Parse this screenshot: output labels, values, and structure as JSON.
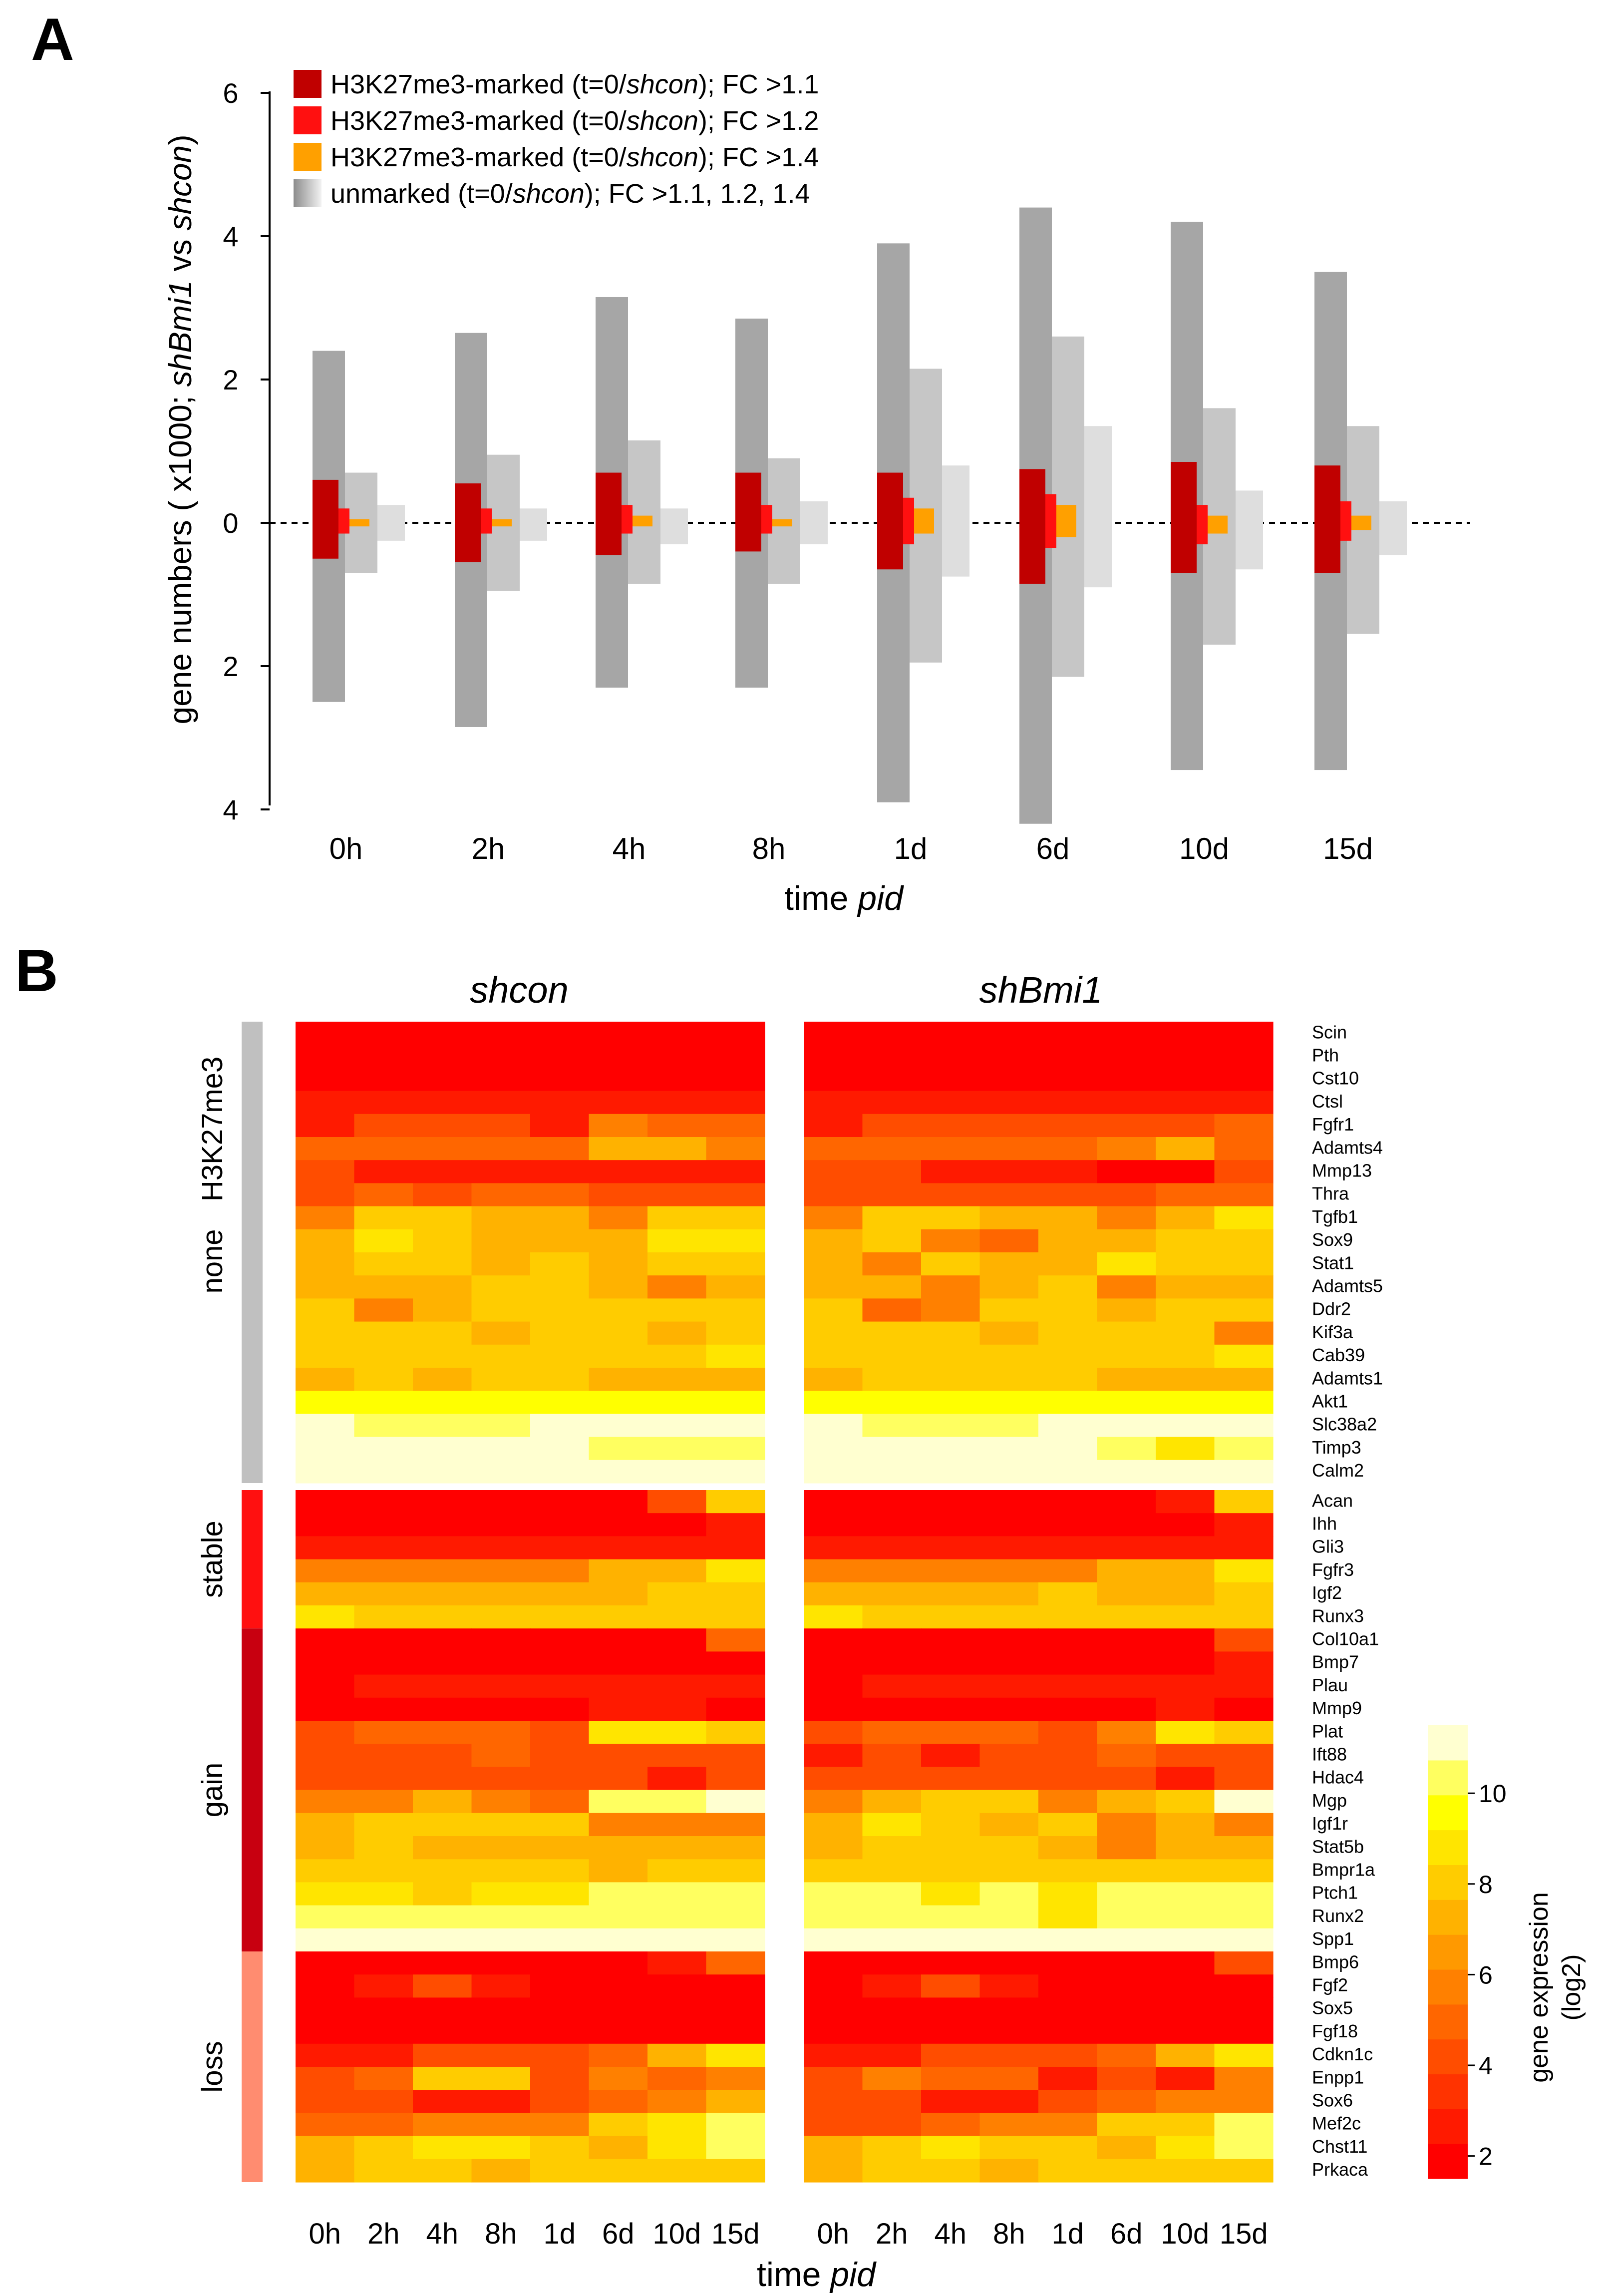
{
  "panel_a": {
    "letter": "A",
    "title": "",
    "ylabel_parts": [
      "gene numbers ( x1000; ",
      "shBmi1",
      " vs ",
      "shcon",
      ")"
    ],
    "xlabel_parts": [
      "time ",
      "pid"
    ],
    "yticks_up": [
      "0",
      "2",
      "4",
      "6"
    ],
    "yticks_down": [
      "2",
      "4"
    ],
    "legend": [
      {
        "color": "#c00000",
        "gradient": false,
        "parts": [
          "H3K27me3-marked (t=0/",
          "shcon",
          "); FC >1.1"
        ]
      },
      {
        "color": "#ff1010",
        "gradient": false,
        "parts": [
          "H3K27me3-marked (t=0/",
          "shcon",
          "); FC >1.2"
        ]
      },
      {
        "color": "#ffa000",
        "gradient": false,
        "parts": [
          "H3K27me3-marked (t=0/",
          "shcon",
          "); FC >1.4"
        ]
      },
      {
        "color": "#999999",
        "gradient": true,
        "parts": [
          "unmarked (t=0/",
          "shcon",
          "); FC >1.1, 1.2, 1.4"
        ]
      }
    ],
    "colors": {
      "marked": [
        "#c00000",
        "#ff1010",
        "#ffa000"
      ],
      "unmarked": [
        "#a6a6a6",
        "#c6c6c6",
        "#dedede"
      ]
    }
  },
  "panel_b": {
    "letter": "B",
    "headings": [
      "shcon",
      "shBmi1"
    ],
    "xlabel_parts": [
      "time ",
      "pid"
    ],
    "groups": [
      {
        "label": "H3K27me3",
        "label2": "none",
        "start": 0,
        "count": 20,
        "color": "#c0c0c0"
      },
      {
        "label": "stable",
        "label2": "",
        "start": 20,
        "count": 6,
        "color": "#ff1010"
      },
      {
        "label": "gain",
        "label2": "",
        "start": 26,
        "count": 14,
        "color": "#c80010"
      },
      {
        "label": "loss",
        "label2": "",
        "start": 40,
        "count": 10,
        "color": "#ff8c70"
      }
    ],
    "colorbar": {
      "label1": "gene expression",
      "label2": "(log2)",
      "ticks": [
        "2",
        "4",
        "6",
        "8",
        "10"
      ],
      "palette": [
        "#ff0000",
        "#ff1a00",
        "#ff3300",
        "#ff4d00",
        "#ff6600",
        "#ff8000",
        "#ff9900",
        "#ffb200",
        "#ffcc00",
        "#ffe500",
        "#ffff00",
        "#ffff60",
        "#ffffd0"
      ]
    }
  },
  "chart_data": [
    {
      "type": "bar",
      "title": "",
      "xlabel": "time pid",
      "ylabel": "gene numbers ( x1000; shBmi1 vs shcon)",
      "ylim": [
        -4,
        6
      ],
      "categories": [
        "0h",
        "2h",
        "4h",
        "8h",
        "1d",
        "6d",
        "10d",
        "15d"
      ],
      "series": [
        {
          "name": "unmarked FC >1.1 up",
          "values": [
            2.4,
            2.65,
            3.15,
            2.85,
            3.9,
            4.4,
            4.2,
            3.5
          ]
        },
        {
          "name": "unmarked FC >1.1 down",
          "values": [
            -2.5,
            -2.85,
            -2.3,
            -2.3,
            -3.9,
            -4.2,
            -3.45,
            -3.45
          ]
        },
        {
          "name": "unmarked FC >1.2 up",
          "values": [
            0.7,
            0.95,
            1.15,
            0.9,
            2.15,
            2.6,
            1.6,
            1.35
          ]
        },
        {
          "name": "unmarked FC >1.2 down",
          "values": [
            -0.7,
            -0.95,
            -0.85,
            -0.85,
            -1.95,
            -2.15,
            -1.7,
            -1.55
          ]
        },
        {
          "name": "unmarked FC >1.4 up",
          "values": [
            0.25,
            0.2,
            0.2,
            0.3,
            0.8,
            1.35,
            0.45,
            0.3
          ]
        },
        {
          "name": "unmarked FC >1.4 down",
          "values": [
            -0.25,
            -0.25,
            -0.3,
            -0.3,
            -0.75,
            -0.9,
            -0.65,
            -0.45
          ]
        },
        {
          "name": "H3K27me3-marked FC >1.1 up",
          "values": [
            0.6,
            0.55,
            0.7,
            0.7,
            0.7,
            0.75,
            0.85,
            0.8
          ]
        },
        {
          "name": "H3K27me3-marked FC >1.1 down",
          "values": [
            -0.5,
            -0.55,
            -0.45,
            -0.4,
            -0.65,
            -0.85,
            -0.7,
            -0.7
          ]
        },
        {
          "name": "H3K27me3-marked FC >1.2 up",
          "values": [
            0.2,
            0.2,
            0.25,
            0.25,
            0.35,
            0.4,
            0.25,
            0.3
          ]
        },
        {
          "name": "H3K27me3-marked FC >1.2 down",
          "values": [
            -0.15,
            -0.15,
            -0.15,
            -0.15,
            -0.3,
            -0.35,
            -0.3,
            -0.25
          ]
        },
        {
          "name": "H3K27me3-marked FC >1.4 up",
          "values": [
            0.05,
            0.05,
            0.1,
            0.05,
            0.2,
            0.25,
            0.1,
            0.1
          ]
        },
        {
          "name": "H3K27me3-marked FC >1.4 down",
          "values": [
            -0.05,
            -0.05,
            -0.05,
            -0.05,
            -0.15,
            -0.2,
            -0.15,
            -0.1
          ]
        }
      ]
    },
    {
      "type": "heatmap",
      "title": "",
      "xlabel": "time pid",
      "ylabel": "",
      "value_range": [
        1.5,
        11.5
      ],
      "conditions": [
        "shcon",
        "shBmi1"
      ],
      "timepoints": [
        "0h",
        "2h",
        "4h",
        "8h",
        "1d",
        "6d",
        "10d",
        "15d"
      ],
      "genes": [
        "Scin",
        "Pth",
        "Cst10",
        "Ctsl",
        "Fgfr1",
        "Adamts4",
        "Mmp13",
        "Thra",
        "Tgfb1",
        "Sox9",
        "Stat1",
        "Adamts5",
        "Ddr2",
        "Kif3a",
        "Cab39",
        "Adamts1",
        "Akt1",
        "Slc38a2",
        "Timp3",
        "Calm2",
        "Acan",
        "Ihh",
        "Gli3",
        "Fgfr3",
        "Igf2",
        "Runx3",
        "Col10a1",
        "Bmp7",
        "Plau",
        "Mmp9",
        "Plat",
        "Ift88",
        "Hdac4",
        "Mgp",
        "Igf1r",
        "Stat5b",
        "Bmpr1a",
        "Ptch1",
        "Runx2",
        "Spp1",
        "Bmp6",
        "Fgf2",
        "Sox5",
        "Fgf18",
        "Cdkn1c",
        "Enpp1",
        "Sox6",
        "Mef2c",
        "Chst11",
        "Prkaca"
      ],
      "values_shcon": [
        [
          2,
          2,
          2,
          2,
          2,
          2,
          2,
          2
        ],
        [
          2,
          2,
          2,
          2,
          2,
          2,
          2,
          2
        ],
        [
          2,
          2,
          2,
          2,
          2,
          2,
          2,
          2
        ],
        [
          3,
          3,
          3,
          2.5,
          2.5,
          2.5,
          2.5,
          2.5
        ],
        [
          3,
          4,
          4,
          4,
          3,
          6,
          5,
          5
        ],
        [
          5,
          5,
          5,
          5,
          5,
          7,
          7,
          6
        ],
        [
          4,
          3,
          3,
          2.5,
          2.5,
          3,
          3,
          3
        ],
        [
          4,
          5,
          4,
          5,
          5,
          4,
          4,
          4
        ],
        [
          6,
          8,
          8,
          7,
          7,
          6,
          8,
          8
        ],
        [
          7,
          9,
          8,
          7,
          7,
          7,
          9,
          9
        ],
        [
          7,
          8,
          8,
          7,
          8,
          7,
          8,
          8
        ],
        [
          7,
          7,
          7,
          8,
          8,
          7,
          6,
          7
        ],
        [
          8,
          6,
          7,
          8,
          8,
          8,
          8,
          8
        ],
        [
          8,
          8,
          8,
          7,
          8,
          8,
          7,
          8
        ],
        [
          8,
          8,
          8,
          8,
          8,
          8,
          8,
          9
        ],
        [
          7,
          8,
          7,
          8,
          8,
          7,
          7,
          7
        ],
        [
          9.5,
          9.5,
          9.5,
          9.5,
          9.5,
          9.5,
          9.5,
          9.5
        ],
        [
          11,
          10,
          10,
          10,
          11,
          11,
          11,
          11
        ],
        [
          11,
          12,
          12,
          12,
          11,
          10,
          10,
          10
        ],
        [
          12,
          12,
          12,
          12,
          12,
          12,
          12,
          12
        ],
        [
          2,
          2,
          2,
          2,
          2,
          2,
          4,
          8
        ],
        [
          2,
          2,
          2,
          2,
          2,
          2,
          2,
          3
        ],
        [
          3,
          3,
          3,
          3,
          3,
          3,
          3,
          3
        ],
        [
          6,
          6,
          6,
          6,
          6,
          7,
          7,
          9
        ],
        [
          7,
          7,
          7,
          7,
          7,
          7,
          8,
          8
        ],
        [
          9,
          8,
          8,
          8,
          8,
          8,
          8,
          8
        ],
        [
          2,
          2,
          2,
          2,
          2,
          2,
          2,
          5
        ],
        [
          2,
          2,
          2,
          2,
          2,
          2,
          2,
          2
        ],
        [
          2,
          3,
          3,
          3,
          3,
          3,
          3,
          3
        ],
        [
          2,
          2,
          2,
          2,
          2,
          3,
          3,
          2
        ],
        [
          4,
          5,
          5,
          5,
          4,
          9,
          9,
          8
        ],
        [
          4,
          4,
          4,
          5,
          4,
          4,
          4,
          4
        ],
        [
          4,
          4,
          4,
          4,
          4,
          4,
          3,
          4
        ],
        [
          6,
          6,
          7,
          6,
          5,
          10,
          10,
          11
        ],
        [
          7,
          8,
          8,
          8,
          8,
          6,
          6,
          6
        ],
        [
          7,
          8,
          7,
          7,
          7,
          7,
          7,
          7
        ],
        [
          8,
          8,
          8,
          8,
          8,
          7,
          8,
          8
        ],
        [
          9,
          9,
          8,
          9,
          9,
          10,
          10,
          10
        ],
        [
          10,
          10,
          10,
          10,
          10,
          10,
          10,
          10
        ],
        [
          11,
          12,
          12,
          12,
          11,
          12,
          12,
          12
        ],
        [
          2,
          2,
          2,
          2,
          2,
          2,
          3,
          5
        ],
        [
          2,
          3,
          4,
          3,
          2,
          2,
          2,
          2
        ],
        [
          2,
          2,
          2,
          2,
          2,
          2,
          2,
          2
        ],
        [
          2,
          2,
          2,
          2,
          2,
          2,
          2,
          2
        ],
        [
          3,
          3,
          4,
          4,
          4,
          5,
          7,
          9
        ],
        [
          4,
          5,
          8,
          8,
          4,
          6,
          5,
          6
        ],
        [
          4,
          4,
          3,
          3,
          4,
          5,
          6,
          7
        ],
        [
          5,
          5,
          6,
          6,
          6,
          8,
          9,
          10
        ],
        [
          7,
          8,
          9,
          9,
          8,
          7,
          9,
          10
        ],
        [
          7,
          8,
          8,
          7,
          8,
          8,
          8,
          8
        ]
      ],
      "values_shBmi1": [
        [
          2,
          2,
          2,
          2,
          2,
          2,
          2,
          2
        ],
        [
          2,
          2,
          2,
          2,
          2,
          2,
          2,
          2
        ],
        [
          2,
          2,
          2,
          2,
          2,
          2,
          2,
          2
        ],
        [
          3,
          3,
          3,
          3,
          3,
          3,
          3,
          3
        ],
        [
          3,
          4,
          4,
          4,
          4,
          4,
          4,
          5
        ],
        [
          5,
          5,
          5,
          5,
          5,
          6,
          7,
          5
        ],
        [
          4,
          4,
          3,
          3,
          3,
          2,
          2,
          4
        ],
        [
          4,
          4,
          4,
          4,
          4,
          4,
          5,
          5
        ],
        [
          6,
          8,
          8,
          7,
          7,
          6,
          7,
          9
        ],
        [
          7,
          8,
          6,
          5,
          7,
          7,
          8,
          8
        ],
        [
          7,
          6,
          8,
          7,
          7,
          9,
          8,
          8
        ],
        [
          7,
          7,
          6,
          7,
          8,
          6,
          7,
          7
        ],
        [
          8,
          5,
          6,
          8,
          8,
          7,
          8,
          8
        ],
        [
          8,
          8,
          8,
          7,
          8,
          8,
          8,
          6
        ],
        [
          8,
          8,
          8,
          8,
          8,
          8,
          8,
          9
        ],
        [
          7,
          8,
          8,
          8,
          8,
          7,
          7,
          7
        ],
        [
          9.5,
          9.5,
          9.5,
          9.5,
          9.5,
          9.5,
          9.5,
          9.5
        ],
        [
          11,
          10,
          10,
          10,
          11,
          11,
          11,
          11
        ],
        [
          11,
          12,
          12,
          12,
          11,
          10,
          9,
          10
        ],
        [
          12,
          12,
          12,
          12,
          12,
          12,
          12,
          12
        ],
        [
          2,
          2,
          2,
          2,
          2,
          2,
          3,
          8
        ],
        [
          2,
          2,
          2,
          2,
          2,
          2,
          2,
          3
        ],
        [
          3,
          3,
          3,
          3,
          3,
          3,
          3,
          3
        ],
        [
          6,
          6,
          6,
          6,
          6,
          7,
          7,
          9
        ],
        [
          7,
          7,
          7,
          7,
          8,
          7,
          7,
          8
        ],
        [
          9,
          8,
          8,
          8,
          8,
          8,
          8,
          8
        ],
        [
          2,
          2,
          2,
          2,
          2,
          2,
          2,
          4
        ],
        [
          2,
          2,
          2,
          2,
          2,
          2,
          2,
          3
        ],
        [
          2,
          3,
          3,
          3,
          3,
          3,
          3,
          3
        ],
        [
          2,
          2,
          2,
          2,
          2,
          2,
          3,
          2
        ],
        [
          4,
          5,
          5,
          5,
          4,
          6,
          9,
          8
        ],
        [
          3,
          4,
          3,
          4,
          4,
          5,
          4,
          4
        ],
        [
          4,
          4,
          4,
          4,
          4,
          4,
          3,
          4
        ],
        [
          6,
          7,
          8,
          8,
          6,
          7,
          8,
          11
        ],
        [
          7,
          9,
          8,
          7,
          8,
          6,
          7,
          6
        ],
        [
          7,
          8,
          8,
          8,
          7,
          6,
          7,
          7
        ],
        [
          8,
          8,
          8,
          8,
          8,
          8,
          8,
          8
        ],
        [
          10,
          10,
          9,
          10,
          9,
          10,
          10,
          10
        ],
        [
          10,
          10,
          10,
          10,
          9,
          10,
          10,
          10
        ],
        [
          11,
          12,
          12,
          12,
          11,
          12,
          12,
          12
        ],
        [
          2,
          2,
          2,
          2,
          2,
          2,
          2,
          4
        ],
        [
          2,
          3,
          4,
          3,
          2,
          2,
          2,
          2
        ],
        [
          2,
          2,
          2,
          2,
          2,
          2,
          2,
          2
        ],
        [
          2,
          2,
          2,
          2,
          2,
          2,
          2,
          2
        ],
        [
          3,
          3,
          4,
          4,
          4,
          5,
          7,
          9
        ],
        [
          4,
          6,
          5,
          5,
          3,
          4,
          3,
          6
        ],
        [
          4,
          4,
          3,
          3,
          4,
          5,
          6,
          6
        ],
        [
          4,
          4,
          5,
          6,
          6,
          8,
          8,
          10
        ],
        [
          7,
          8,
          9,
          8,
          8,
          7,
          9,
          10
        ],
        [
          7,
          8,
          8,
          7,
          8,
          8,
          8,
          8
        ]
      ]
    }
  ]
}
